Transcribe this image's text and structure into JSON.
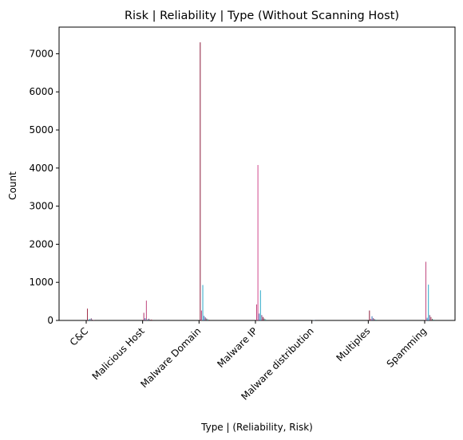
{
  "chart_data": {
    "type": "bar",
    "title": "Risk | Reliability | Type (Without Scanning Host)",
    "xlabel": "Type | (Reliability, Risk)",
    "ylabel": "Count",
    "ylim": [
      0,
      7700
    ],
    "yticks": [
      0,
      1000,
      2000,
      3000,
      4000,
      5000,
      6000,
      7000
    ],
    "categories": [
      "C&C",
      "Malicious Host",
      "Malware Domain",
      "Malware IP",
      "Malware distribution",
      "Multiples",
      "Spamming"
    ],
    "grid": false,
    "legend": "none",
    "bars": {
      "C&C": [
        {
          "value": 310,
          "color": "#a0304a"
        },
        {
          "value": 25,
          "color": "#3b6fb6"
        },
        {
          "value": 40,
          "color": "#2aa198"
        },
        {
          "value": 55,
          "color": "#7a3c7a"
        },
        {
          "value": 20,
          "color": "#555555"
        },
        {
          "value": 15,
          "color": "#c0487e"
        }
      ],
      "Malicious Host": [
        {
          "value": 200,
          "color": "#b0306a"
        },
        {
          "value": 60,
          "color": "#3b6fb6"
        },
        {
          "value": 520,
          "color": "#c0487e"
        },
        {
          "value": 30,
          "color": "#2aa198"
        },
        {
          "value": 45,
          "color": "#7a3c7a"
        },
        {
          "value": 20,
          "color": "#555555"
        },
        {
          "value": 25,
          "color": "#a0304a"
        }
      ],
      "Malware Domain": [
        {
          "value": 7300,
          "color": "#8b1a3a"
        },
        {
          "value": 260,
          "color": "#c0487e"
        },
        {
          "value": 930,
          "color": "#2aa8c8"
        },
        {
          "value": 120,
          "color": "#3b6fb6"
        },
        {
          "value": 80,
          "color": "#7a3c7a"
        },
        {
          "value": 50,
          "color": "#555555"
        },
        {
          "value": 30,
          "color": "#2aa198"
        },
        {
          "value": 20,
          "color": "#a0304a"
        }
      ],
      "Malware IP": [
        {
          "value": 420,
          "color": "#c0487e"
        },
        {
          "value": 4080,
          "color": "#d04a8e"
        },
        {
          "value": 180,
          "color": "#3b6fb6"
        },
        {
          "value": 790,
          "color": "#2aa8c8"
        },
        {
          "value": 140,
          "color": "#7a3c7a"
        },
        {
          "value": 90,
          "color": "#8b1a3a"
        },
        {
          "value": 50,
          "color": "#555555"
        },
        {
          "value": 30,
          "color": "#2aa198"
        }
      ],
      "Malware distribution": [
        {
          "value": 10,
          "color": "#555555"
        },
        {
          "value": 8,
          "color": "#3b6fb6"
        }
      ],
      "Multiples": [
        {
          "value": 260,
          "color": "#8b1a3a"
        },
        {
          "value": 40,
          "color": "#c0487e"
        },
        {
          "value": 110,
          "color": "#3b6fb6"
        },
        {
          "value": 60,
          "color": "#7a3c7a"
        },
        {
          "value": 35,
          "color": "#555555"
        },
        {
          "value": 20,
          "color": "#2aa198"
        }
      ],
      "Spamming": [
        {
          "value": 1540,
          "color": "#c0487e"
        },
        {
          "value": 70,
          "color": "#3b6fb6"
        },
        {
          "value": 940,
          "color": "#2aa8c8"
        },
        {
          "value": 140,
          "color": "#7a3c7a"
        },
        {
          "value": 90,
          "color": "#a0304a"
        },
        {
          "value": 40,
          "color": "#555555"
        },
        {
          "value": 25,
          "color": "#2aa198"
        }
      ]
    }
  }
}
